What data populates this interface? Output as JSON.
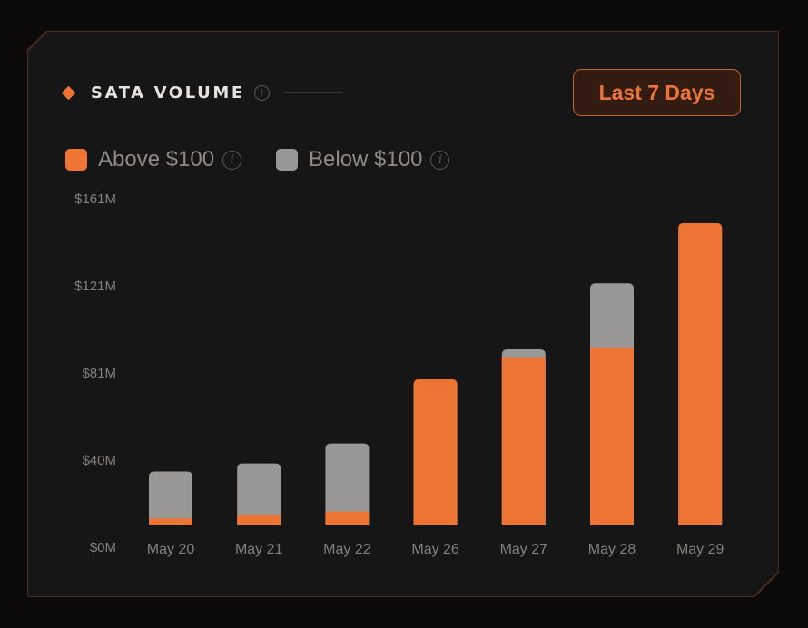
{
  "header": {
    "title": "SATA VOLUME",
    "range_button": "Last 7 Days"
  },
  "legend": [
    {
      "label": "Above $100",
      "color": "#ee7433",
      "icon": "info-icon"
    },
    {
      "label": "Below $100",
      "color": "#9a9896",
      "icon": "info-icon"
    }
  ],
  "chart_data": {
    "type": "bar",
    "stacked": true,
    "categories": [
      "May 20",
      "May 21",
      "May 22",
      "May 26",
      "May 27",
      "May 28",
      "May 29"
    ],
    "series": [
      {
        "name": "Above $100",
        "color": "#ee7433",
        "values": [
          3.5,
          5,
          7,
          72,
          84,
          89,
          147
        ]
      },
      {
        "name": "Below $100",
        "color": "#9a9896",
        "values": [
          23.5,
          26,
          34,
          1,
          4,
          32,
          4
        ]
      }
    ],
    "y_ticks": [
      "$0M",
      "$40M",
      "$81M",
      "$121M",
      "$161M"
    ],
    "y_tick_values": [
      0,
      40,
      81,
      121,
      161
    ],
    "ylim": [
      0,
      161
    ],
    "grid": false,
    "legend_position": "top-left"
  }
}
